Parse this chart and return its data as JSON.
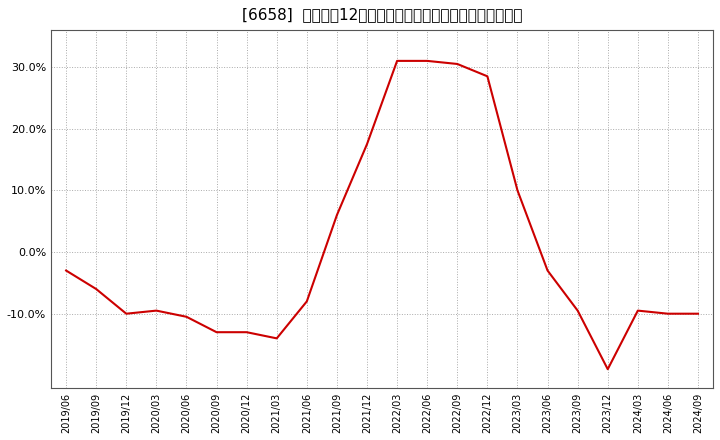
{
  "title": "[6658]  売上高の12か月移動合計の対前年同期増減率の推移",
  "line_color": "#cc0000",
  "background_color": "#ffffff",
  "plot_bg_color": "#ffffff",
  "grid_color": "#aaaaaa",
  "dates": [
    "2019/06",
    "2019/09",
    "2019/12",
    "2020/03",
    "2020/06",
    "2020/09",
    "2020/12",
    "2021/03",
    "2021/06",
    "2021/09",
    "2021/12",
    "2022/03",
    "2022/06",
    "2022/09",
    "2022/12",
    "2023/03",
    "2023/06",
    "2023/09",
    "2023/12",
    "2024/03",
    "2024/06",
    "2024/09"
  ],
  "values": [
    -0.03,
    -0.06,
    -0.1,
    -0.095,
    -0.105,
    -0.13,
    -0.13,
    -0.14,
    -0.08,
    0.06,
    0.175,
    0.31,
    0.31,
    0.305,
    0.285,
    0.1,
    -0.03,
    -0.095,
    -0.19,
    -0.095,
    -0.1,
    -0.1
  ],
  "ylim": [
    -0.22,
    0.36
  ],
  "yticks": [
    -0.1,
    0.0,
    0.1,
    0.2,
    0.3
  ]
}
